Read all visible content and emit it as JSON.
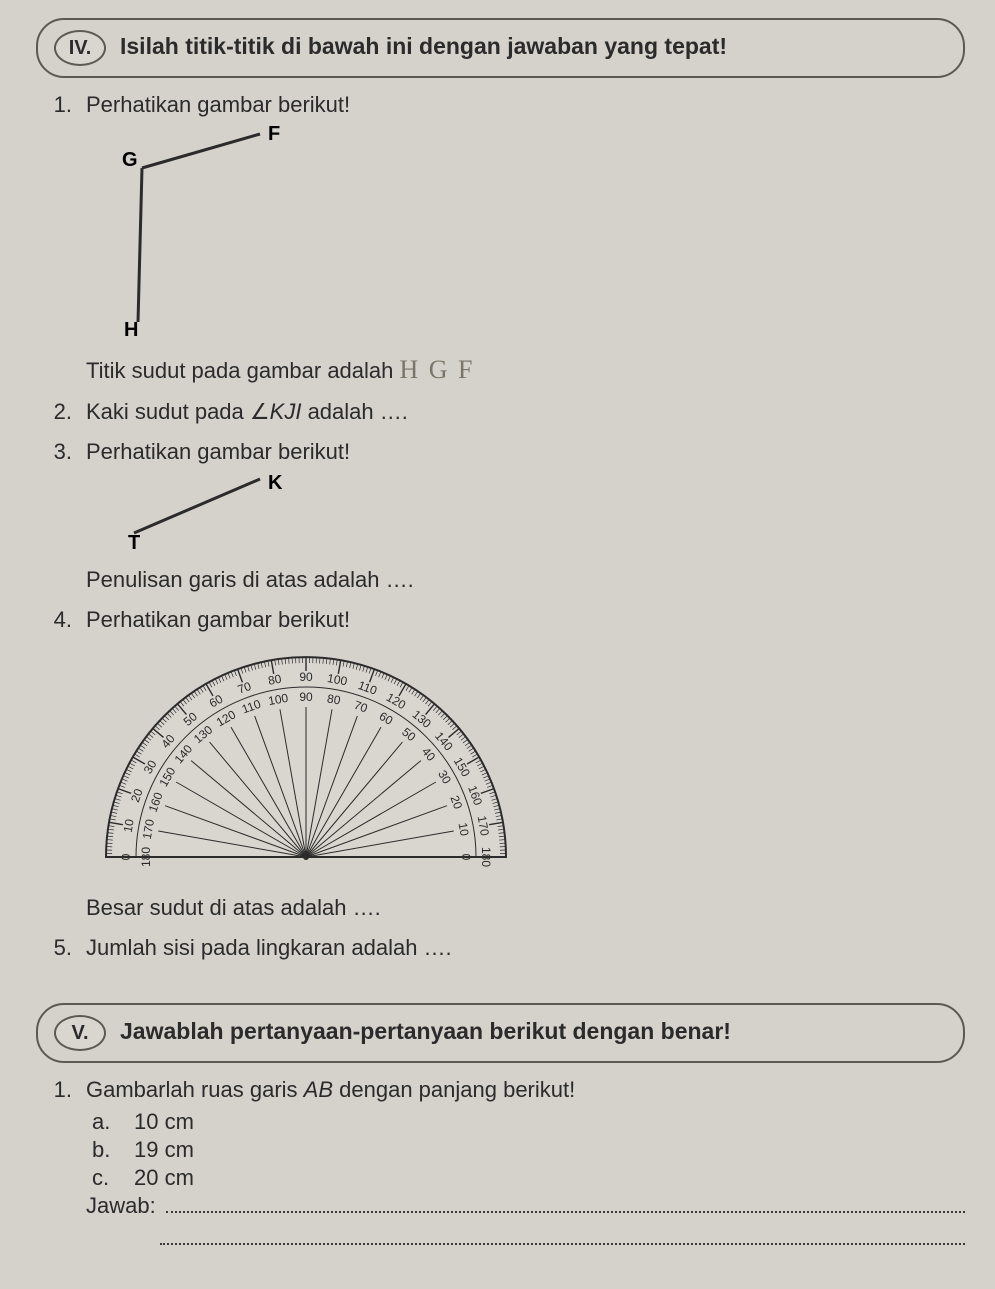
{
  "section_iv": {
    "roman": "IV.",
    "title": "Isilah titik-titik di bawah ini dengan jawaban yang tepat!",
    "q1": {
      "num": "1.",
      "prompt": "Perhatikan gambar berikut!",
      "fig": {
        "type": "angle-diagram",
        "points": {
          "F": [
            150,
            10
          ],
          "G": [
            32,
            44
          ],
          "H": [
            28,
            198
          ]
        },
        "label_font_size": 20,
        "label_weight": "bold",
        "stroke_color": "#2b2b2b",
        "stroke_width": 3,
        "background": "#d4d2cb"
      },
      "line2_before": "Titik sudut pada gambar adalah ",
      "line2_hand": "H G F"
    },
    "q2": {
      "num": "2.",
      "text_before": "Kaki sudut pada ",
      "angle_name": "KJI",
      "text_after": " adalah …."
    },
    "q3": {
      "num": "3.",
      "prompt": "Perhatikan gambar berikut!",
      "fig": {
        "type": "line-segment",
        "points": {
          "T": [
            24,
            62
          ],
          "K": [
            150,
            8
          ]
        },
        "label_font_size": 20,
        "label_weight": "bold",
        "stroke_color": "#2b2b2b",
        "stroke_width": 3,
        "background": "#d4d2cb"
      },
      "line2": "Penulisan garis di atas adalah …."
    },
    "q4": {
      "num": "4.",
      "prompt": "Perhatikan gambar berikut!",
      "fig": {
        "type": "protractor",
        "radius_outer": 200,
        "radius_inner": 150,
        "outer_scale_label": "180→0",
        "inner_scale_label": "0→180",
        "tick_major_step": 10,
        "tick_minor_step": 1,
        "number_font_size": 12,
        "stroke_color": "#2b2b2b",
        "fill_color": "#d8d6cf",
        "ray_angles_deg": [
          0,
          10,
          20,
          30,
          40,
          50,
          60,
          70,
          80,
          90,
          100,
          110,
          120,
          130,
          140,
          150,
          160,
          170,
          180
        ],
        "background": "#d4d2cb"
      },
      "line2": "Besar sudut di atas adalah …."
    },
    "q5": {
      "num": "5.",
      "text": "Jumlah sisi pada lingkaran adalah …."
    }
  },
  "section_v": {
    "roman": "V.",
    "title": "Jawablah pertanyaan-pertanyaan berikut dengan benar!",
    "q1": {
      "num": "1.",
      "prompt_before": "Gambarlah ruas garis ",
      "segment": "AB",
      "prompt_after": " dengan panjang berikut!",
      "items": [
        {
          "letter": "a.",
          "val": "10 cm"
        },
        {
          "letter": "b.",
          "val": "19 cm"
        },
        {
          "letter": "c.",
          "val": "20 cm"
        }
      ],
      "answer_label": "Jawab:"
    }
  },
  "colors": {
    "page_bg": "#d4d2cb",
    "text": "#2b2b2b",
    "border": "#5a5a52",
    "handwriting": "#7b7468"
  }
}
